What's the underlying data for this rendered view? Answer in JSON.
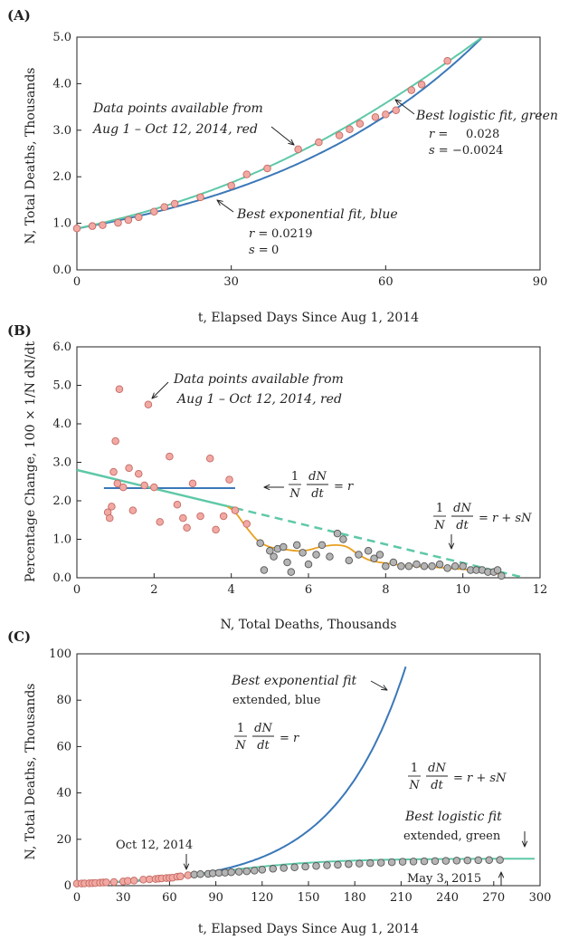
{
  "colors": {
    "data_red": "#f2a9a3",
    "data_red_stroke": "#c46a63",
    "data_gray": "#b4b4b4",
    "exp_blue": "#3a78b8",
    "logistic_green": "#5ec8a8",
    "orange": "#e8a020"
  },
  "chart_data": [
    {
      "panel": "(A)",
      "type": "scatter",
      "xlabel": "t, Elapsed Days Since Aug 1, 2014",
      "ylabel": "N, Total Deaths, Thousands",
      "xlim": [
        0,
        90
      ],
      "ylim": [
        0,
        5
      ],
      "xticks": [
        "0",
        "30",
        "60",
        "90"
      ],
      "yticks": [
        "0.0",
        "1.0",
        "2.0",
        "3.0",
        "4.0",
        "5.0"
      ],
      "series": [
        {
          "kind": "points",
          "color": "red",
          "x": [
            0,
            3,
            5,
            8,
            10,
            12,
            15,
            17,
            19,
            24,
            30,
            33,
            37,
            43,
            47,
            51,
            53,
            55,
            58,
            60,
            62,
            65,
            67,
            72
          ],
          "y": [
            0.89,
            0.94,
            0.96,
            1.01,
            1.07,
            1.13,
            1.25,
            1.35,
            1.42,
            1.56,
            1.81,
            2.05,
            2.18,
            2.59,
            2.74,
            2.89,
            3.02,
            3.14,
            3.28,
            3.34,
            3.43,
            3.86,
            3.98,
            4.49
          ]
        },
        {
          "kind": "exponential_fit",
          "color": "blue",
          "r": 0.0219,
          "s": 0,
          "N0": 0.89,
          "t_range": [
            0,
            79
          ]
        },
        {
          "kind": "logistic_fit",
          "color": "green",
          "r": 0.028,
          "s": -0.0024,
          "N0": 0.89,
          "t_range": [
            0,
            79
          ]
        }
      ],
      "annotations": {
        "data": [
          "Data points available from",
          "Aug 1 – Oct 12, 2014, red"
        ],
        "logistic_title": "Best logistic fit, green",
        "logistic_r_name": "r =",
        "logistic_r": "0.028",
        "logistic_s_name": "s =",
        "logistic_s": "−0.0024",
        "exp_title": "Best exponential fit, blue",
        "exp_r_name": "r =",
        "exp_r": "0.0219",
        "exp_s_name": "s =",
        "exp_s": "0"
      }
    },
    {
      "panel": "(B)",
      "type": "scatter",
      "xlabel": "N, Total Deaths, Thousands",
      "ylabel": "Percentage Change, 100 × 1/N dN/dt",
      "xlim": [
        0,
        12
      ],
      "ylim": [
        0,
        6
      ],
      "xticks": [
        "0",
        "2",
        "4",
        "6",
        "8",
        "10",
        "12"
      ],
      "yticks": [
        "0.0",
        "1.0",
        "2.0",
        "3.0",
        "4.0",
        "5.0",
        "6.0"
      ],
      "series": [
        {
          "kind": "points",
          "color": "red",
          "x": [
            0.8,
            0.85,
            0.9,
            0.95,
            1.0,
            1.05,
            1.1,
            1.2,
            1.35,
            1.45,
            1.6,
            1.75,
            1.85,
            2.0,
            2.15,
            2.4,
            2.6,
            2.75,
            2.85,
            3.0,
            3.2,
            3.45,
            3.6,
            3.8,
            3.95,
            4.1,
            4.4
          ],
          "y": [
            1.7,
            1.55,
            1.85,
            2.75,
            3.55,
            2.45,
            4.9,
            2.35,
            2.85,
            1.75,
            2.7,
            2.4,
            4.5,
            2.35,
            1.45,
            3.15,
            1.9,
            1.55,
            1.3,
            2.45,
            1.6,
            3.1,
            1.25,
            1.6,
            2.55,
            1.75,
            1.4
          ]
        },
        {
          "kind": "points",
          "color": "gray",
          "x": [
            4.75,
            4.85,
            5.0,
            5.1,
            5.2,
            5.35,
            5.45,
            5.55,
            5.7,
            5.85,
            6.0,
            6.2,
            6.35,
            6.55,
            6.75,
            6.9,
            7.05,
            7.3,
            7.55,
            7.7,
            7.85,
            8.0,
            8.2,
            8.4,
            8.6,
            8.8,
            9.0,
            9.2,
            9.4,
            9.6,
            9.8,
            10.0,
            10.2,
            10.35,
            10.5,
            10.65,
            10.8,
            10.9,
            11.0
          ],
          "y": [
            0.9,
            0.2,
            0.7,
            0.55,
            0.75,
            0.8,
            0.4,
            0.15,
            0.85,
            0.65,
            0.35,
            0.6,
            0.85,
            0.55,
            1.15,
            1.0,
            0.45,
            0.6,
            0.7,
            0.5,
            0.6,
            0.3,
            0.4,
            0.3,
            0.3,
            0.35,
            0.3,
            0.3,
            0.35,
            0.25,
            0.3,
            0.3,
            0.2,
            0.2,
            0.2,
            0.15,
            0.15,
            0.2,
            0.05
          ]
        },
        {
          "kind": "exponential_rate",
          "color": "blue",
          "y": 2.33,
          "x_range": [
            0.7,
            4.1
          ]
        },
        {
          "kind": "logistic_rate",
          "color": "green",
          "dashed_from": 4.1,
          "x_range": [
            0,
            11.6
          ],
          "y_at_start": 2.8,
          "y_at_end": 0.0
        },
        {
          "kind": "smooth_curve",
          "color": "orange",
          "x": [
            3.9,
            4.1,
            4.4,
            4.7,
            5.0,
            5.3,
            5.7,
            6.0,
            6.3,
            6.7,
            7.0,
            7.3,
            7.6,
            8.0,
            8.4,
            8.8,
            9.2,
            9.6,
            10.0,
            10.4,
            10.8,
            11.0
          ],
          "y": [
            1.85,
            1.7,
            1.3,
            0.95,
            0.8,
            0.75,
            0.7,
            0.72,
            0.8,
            0.85,
            0.8,
            0.6,
            0.45,
            0.38,
            0.33,
            0.3,
            0.28,
            0.25,
            0.22,
            0.18,
            0.12,
            0.08
          ]
        }
      ],
      "annotations": {
        "data": [
          "Data points available from",
          "Aug 1 – Oct 12, 2014, red"
        ],
        "exp_eq_lhs_num": "1",
        "exp_eq_lhs_den": "N",
        "exp_eq_dnum": "dN",
        "exp_eq_dden": "dt",
        "exp_eq_rhs": "= r",
        "log_eq_lhs_num": "1",
        "log_eq_lhs_den": "N",
        "log_eq_dnum": "dN",
        "log_eq_dden": "dt",
        "log_eq_rhs": "= r + sN"
      }
    },
    {
      "panel": "(C)",
      "type": "scatter",
      "xlabel": "t, Elapsed Days Since Aug 1, 2014",
      "ylabel": "N, Total Deaths, Thousands",
      "xlim": [
        0,
        300
      ],
      "ylim": [
        0,
        100
      ],
      "xticks": [
        "0",
        "30",
        "60",
        "90",
        "120",
        "150",
        "180",
        "210",
        "240",
        "270",
        "300"
      ],
      "yticks": [
        "0",
        "20",
        "40",
        "60",
        "80",
        "100"
      ],
      "series": [
        {
          "kind": "points",
          "color": "red",
          "x": [
            0,
            3,
            5,
            8,
            10,
            12,
            15,
            17,
            19,
            24,
            30,
            33,
            37,
            43,
            47,
            51,
            53,
            55,
            58,
            60,
            62,
            65,
            67,
            72
          ],
          "y": [
            0.89,
            0.94,
            0.96,
            1.01,
            1.07,
            1.13,
            1.25,
            1.35,
            1.42,
            1.56,
            1.81,
            2.05,
            2.18,
            2.59,
            2.74,
            2.89,
            3.02,
            3.14,
            3.28,
            3.34,
            3.43,
            3.86,
            3.98,
            4.49
          ]
        },
        {
          "kind": "points",
          "color": "gray",
          "x": [
            76,
            80,
            85,
            88,
            92,
            96,
            100,
            105,
            110,
            115,
            120,
            127,
            134,
            141,
            148,
            155,
            162,
            169,
            176,
            183,
            190,
            197,
            204,
            211,
            218,
            225,
            232,
            239,
            246,
            253,
            260,
            267,
            274
          ],
          "y": [
            4.8,
            5.0,
            5.1,
            5.3,
            5.5,
            5.6,
            5.8,
            6.0,
            6.2,
            6.5,
            6.9,
            7.3,
            7.6,
            7.9,
            8.2,
            8.5,
            8.8,
            9.0,
            9.3,
            9.5,
            9.7,
            9.9,
            10.1,
            10.3,
            10.4,
            10.5,
            10.6,
            10.7,
            10.8,
            10.9,
            11.0,
            11.05,
            11.1
          ]
        },
        {
          "kind": "exponential_fit",
          "color": "blue",
          "r": 0.0219,
          "s": 0,
          "N0": 0.89,
          "t_range": [
            0,
            213
          ]
        },
        {
          "kind": "logistic_fit",
          "color": "green",
          "r": 0.028,
          "s": -0.0024,
          "N0": 0.89,
          "t_range": [
            0,
            298
          ]
        }
      ],
      "annotations": {
        "exp_title_1": "Best exponential fit",
        "exp_title_2": "extended, blue",
        "log_title_1": "Best logistic fit",
        "log_title_2": "extended, green",
        "oct": "Oct 12, 2014",
        "may": "May 3, 2015",
        "exp_eq_lhs_num": "1",
        "exp_eq_lhs_den": "N",
        "exp_eq_dnum": "dN",
        "exp_eq_dden": "dt",
        "exp_eq_rhs": "= r",
        "log_eq_lhs_num": "1",
        "log_eq_lhs_den": "N",
        "log_eq_dnum": "dN",
        "log_eq_dden": "dt",
        "log_eq_rhs": "= r + sN"
      }
    }
  ]
}
